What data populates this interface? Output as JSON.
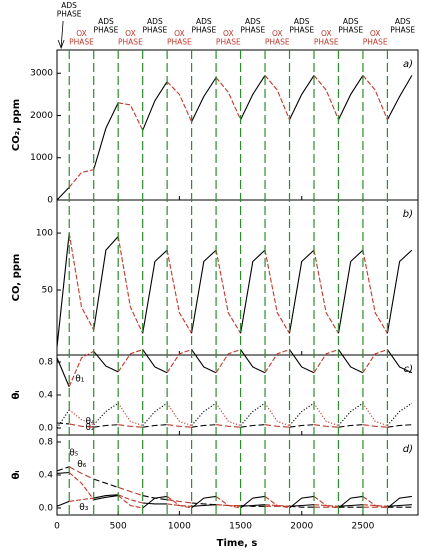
{
  "ads_color": "#000000",
  "ox_color": "#c0392b",
  "boundary_color": "#2e8b2e",
  "phase_boundaries": [
    100,
    300,
    500,
    700,
    900,
    1100,
    1300,
    1500,
    1700,
    1900,
    2100,
    2300,
    2500,
    2700
  ],
  "phase_labels": [
    [
      "ADS",
      "PHASE"
    ],
    [
      "OX",
      "PHASE"
    ],
    [
      "ADS",
      "PHASE"
    ],
    [
      "OX",
      "PHASE"
    ],
    [
      "ADS",
      "PHASE"
    ],
    [
      "OX",
      "PHASE"
    ],
    [
      "ADS",
      "PHASE"
    ],
    [
      "OX",
      "PHASE"
    ],
    [
      "ADS",
      "PHASE"
    ],
    [
      "OX",
      "PHASE"
    ],
    [
      "ADS",
      "PHASE"
    ],
    [
      "OX",
      "PHASE"
    ],
    [
      "ADS",
      "PHASE"
    ],
    [
      "OX",
      "PHASE"
    ],
    [
      "ADS",
      "PHASE"
    ]
  ],
  "x_label": "Time, s",
  "chart_data": [
    {
      "type": "line",
      "panel_label": "a)",
      "y_label": "CO₂, ppm",
      "xlim": [
        0,
        2950
      ],
      "xticks": [
        0,
        500,
        1000,
        1500,
        2000,
        2500
      ],
      "ylim": [
        0,
        3550
      ],
      "yticks": [
        0,
        1000,
        2000,
        3000
      ],
      "x": [
        0,
        100,
        200,
        300,
        400,
        500,
        600,
        700,
        800,
        900,
        1000,
        1100,
        1200,
        1300,
        1400,
        1500,
        1600,
        1700,
        1800,
        1900,
        2000,
        2100,
        2200,
        2300,
        2400,
        2500,
        2600,
        2700,
        2800,
        2900
      ],
      "series": [
        {
          "dash": "solid",
          "values": [
            0,
            300,
            650,
            720,
            1700,
            2300,
            2250,
            1650,
            2350,
            2800,
            2500,
            1850,
            2450,
            2900,
            2550,
            1900,
            2500,
            2950,
            2600,
            1900,
            2500,
            2950,
            2600,
            1900,
            2500,
            2950,
            2600,
            1900,
            2450,
            2950
          ]
        }
      ]
    },
    {
      "type": "line",
      "panel_label": "b)",
      "y_label": "CO, ppm",
      "xlim": [
        0,
        2950
      ],
      "xticks": [
        0,
        500,
        1000,
        1500,
        2000,
        2500
      ],
      "ylim": [
        -7,
        129
      ],
      "yticks": [
        50,
        100
      ],
      "x": [
        0,
        100,
        200,
        300,
        400,
        500,
        600,
        700,
        800,
        900,
        1000,
        1100,
        1200,
        1300,
        1400,
        1500,
        1600,
        1700,
        1800,
        1900,
        2000,
        2100,
        2200,
        2300,
        2400,
        2500,
        2600,
        2700,
        2800,
        2900
      ],
      "series": [
        {
          "dash": "solid",
          "values": [
            0,
            100,
            35,
            15,
            85,
            97,
            35,
            12,
            75,
            85,
            30,
            12,
            75,
            85,
            30,
            12,
            75,
            85,
            30,
            12,
            75,
            85,
            30,
            12,
            75,
            85,
            30,
            12,
            75,
            85
          ]
        }
      ]
    },
    {
      "type": "line",
      "panel_label": "c)",
      "y_label": "θᵢ",
      "xlim": [
        0,
        2950
      ],
      "xticks": [
        0,
        500,
        1000,
        1500,
        2000,
        2500
      ],
      "ylim": [
        -0.085,
        0.885
      ],
      "yticks": [
        {
          "value": 0,
          "label": "0.0"
        },
        0.4,
        0.8
      ],
      "x": [
        0,
        100,
        200,
        300,
        400,
        500,
        600,
        700,
        800,
        900,
        1000,
        1100,
        1200,
        1300,
        1400,
        1500,
        1600,
        1700,
        1800,
        1900,
        2000,
        2100,
        2200,
        2300,
        2400,
        2500,
        2600,
        2700,
        2800,
        2900
      ],
      "series": [
        {
          "name": "θ₁",
          "dash": "solid",
          "values": [
            0.85,
            0.5,
            0.85,
            0.93,
            0.75,
            0.68,
            0.9,
            0.95,
            0.74,
            0.67,
            0.9,
            0.95,
            0.74,
            0.67,
            0.9,
            0.95,
            0.74,
            0.67,
            0.9,
            0.95,
            0.74,
            0.67,
            0.9,
            0.95,
            0.74,
            0.67,
            0.9,
            0.95,
            0.74,
            0.67
          ]
        },
        {
          "name": "θ₂",
          "dash": "dotted",
          "values": [
            0,
            0.22,
            0.1,
            0.04,
            0.2,
            0.3,
            0.08,
            0.03,
            0.2,
            0.3,
            0.08,
            0.03,
            0.2,
            0.3,
            0.08,
            0.03,
            0.2,
            0.3,
            0.08,
            0.03,
            0.2,
            0.3,
            0.08,
            0.03,
            0.2,
            0.3,
            0.08,
            0.03,
            0.2,
            0.3
          ]
        },
        {
          "name": "θ₄",
          "dash": "dashed",
          "values": [
            0.06,
            0.05,
            0.02,
            0.01,
            0.03,
            0.04,
            0.02,
            0.01,
            0.03,
            0.04,
            0.02,
            0.01,
            0.03,
            0.04,
            0.02,
            0.01,
            0.03,
            0.04,
            0.02,
            0.01,
            0.03,
            0.04,
            0.02,
            0.01,
            0.03,
            0.04,
            0.02,
            0.01,
            0.03,
            0.04
          ]
        }
      ]
    },
    {
      "type": "line",
      "panel_label": "d)",
      "y_label": "θᵢ",
      "xlim": [
        0,
        2950
      ],
      "xticks": [
        0,
        500,
        1000,
        1500,
        2000,
        2500
      ],
      "ylim": [
        -0.085,
        0.885
      ],
      "yticks": [
        {
          "value": 0,
          "label": "0.0"
        },
        0.4,
        0.8
      ],
      "x": [
        0,
        100,
        200,
        300,
        400,
        500,
        600,
        700,
        800,
        900,
        1000,
        1100,
        1200,
        1300,
        1400,
        1500,
        1600,
        1700,
        1800,
        1900,
        2000,
        2100,
        2200,
        2300,
        2400,
        2500,
        2600,
        2700,
        2800,
        2900
      ],
      "series": [
        {
          "name": "θ₅",
          "dash": "dashed",
          "values": [
            0.45,
            0.5,
            0.42,
            0.35,
            0.3,
            0.25,
            0.2,
            0.15,
            0.12,
            0.1,
            0.08,
            0.06,
            0.05,
            0.04,
            0.03,
            0.03,
            0.02,
            0.02,
            0.02,
            0.02,
            0.01,
            0.01,
            0.01,
            0.01,
            0.01,
            0.01,
            0.01,
            0.01,
            0.01,
            0.01
          ]
        },
        {
          "name": "θ₆",
          "dash": "solid",
          "values": [
            0.42,
            0.43,
            0.3,
            0.1,
            0.13,
            0.15,
            0.03,
            0,
            0.12,
            0.14,
            0.03,
            0,
            0.12,
            0.14,
            0.03,
            0,
            0.12,
            0.14,
            0.03,
            0,
            0.12,
            0.14,
            0.03,
            0,
            0.12,
            0.14,
            0.03,
            0,
            0.12,
            0.14
          ]
        },
        {
          "name": "θ₃",
          "dash": "solid",
          "values": [
            0.02,
            0.08,
            0.1,
            0.12,
            0.15,
            0.16,
            0.1,
            0.06,
            0.05,
            0.05,
            0.03,
            0.02,
            0.03,
            0.04,
            0.03,
            0.02,
            0.03,
            0.04,
            0.03,
            0.02,
            0.03,
            0.04,
            0.03,
            0.02,
            0.03,
            0.04,
            0.03,
            0.02,
            0.03,
            0.04
          ]
        }
      ]
    }
  ]
}
